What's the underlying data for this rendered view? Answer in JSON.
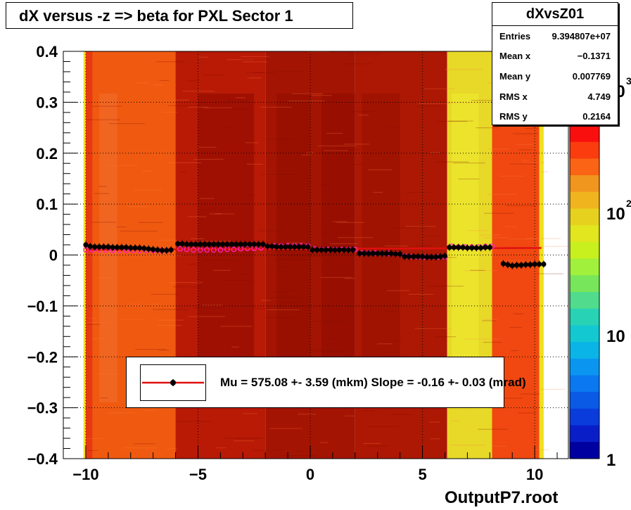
{
  "header": {
    "title": "dX versus -z  => beta for PXL Sector  1"
  },
  "stats": {
    "title": "dXvsZ01",
    "rows": [
      {
        "label": "Entries",
        "value": "9.394807e+07"
      },
      {
        "label": "Mean x",
        "value": "−0.1371"
      },
      {
        "label": "Mean y",
        "value": "0.007769"
      },
      {
        "label": "RMS x",
        "value": "4.749"
      },
      {
        "label": "RMS y",
        "value": "0.2164"
      }
    ]
  },
  "legend": {
    "text": "Mu =  575.08 +-  3.59 (mkm) Slope =   -0.16 +-  0.03 (mrad)"
  },
  "footer": {
    "filename": "OutputP7.root"
  },
  "chart_data": {
    "type": "heatmap",
    "xlim": [
      -11,
      11.5
    ],
    "ylim": [
      -0.4,
      0.4
    ],
    "x_ticks": [
      "−10",
      "−5",
      "0",
      "5",
      "10"
    ],
    "y_ticks": [
      "−0.4",
      "−0.3",
      "−0.2",
      "−0.1",
      "0",
      "0.1",
      "0.2",
      "0.3",
      "0.4"
    ],
    "y_tick_values": [
      -0.4,
      -0.3,
      -0.2,
      -0.1,
      0,
      0.1,
      0.2,
      0.3,
      0.4
    ],
    "x_tick_values": [
      -10,
      -5,
      0,
      5,
      10
    ],
    "color_scale": {
      "labels": [
        "1",
        "10",
        "10",
        "10"
      ],
      "exponents": [
        "",
        "",
        "2",
        "3"
      ],
      "min": 1,
      "max": 1000,
      "log": true
    },
    "grid": true,
    "fit_line": {
      "x": [
        -10,
        10.3
      ],
      "y": [
        0.0105,
        0.0138
      ],
      "color": "#e01010"
    },
    "series_black": [
      [
        -10,
        0.02
      ],
      [
        -9.8,
        0.017
      ],
      [
        -9.6,
        0.016
      ],
      [
        -9.4,
        0.016
      ],
      [
        -9.2,
        0.016
      ],
      [
        -9.0,
        0.016
      ],
      [
        -8.8,
        0.015
      ],
      [
        -8.6,
        0.015
      ],
      [
        -8.4,
        0.015
      ],
      [
        -8.2,
        0.015
      ],
      [
        -8.0,
        0.014
      ],
      [
        -7.8,
        0.014
      ],
      [
        -7.6,
        0.014
      ],
      [
        -7.4,
        0.013
      ],
      [
        -7.2,
        0.012
      ],
      [
        -7.0,
        0.011
      ],
      [
        -6.8,
        0.01
      ],
      [
        -6.6,
        0.009
      ],
      [
        -6.4,
        0.009
      ],
      [
        -6.2,
        0.01
      ],
      [
        -5.9,
        0.022
      ],
      [
        -5.7,
        0.022
      ],
      [
        -5.5,
        0.021
      ],
      [
        -5.3,
        0.021
      ],
      [
        -5.1,
        0.021
      ],
      [
        -4.9,
        0.021
      ],
      [
        -4.7,
        0.021
      ],
      [
        -4.5,
        0.021
      ],
      [
        -4.3,
        0.021
      ],
      [
        -4.1,
        0.021
      ],
      [
        -3.9,
        0.021
      ],
      [
        -3.7,
        0.021
      ],
      [
        -3.5,
        0.021
      ],
      [
        -3.3,
        0.021
      ],
      [
        -3.1,
        0.021
      ],
      [
        -2.9,
        0.021
      ],
      [
        -2.7,
        0.021
      ],
      [
        -2.5,
        0.021
      ],
      [
        -2.3,
        0.021
      ],
      [
        -2.1,
        0.021
      ],
      [
        -1.9,
        0.017
      ],
      [
        -1.7,
        0.017
      ],
      [
        -1.5,
        0.016
      ],
      [
        -1.3,
        0.016
      ],
      [
        -1.1,
        0.016
      ],
      [
        -0.9,
        0.016
      ],
      [
        -0.7,
        0.016
      ],
      [
        -0.5,
        0.016
      ],
      [
        -0.3,
        0.016
      ],
      [
        -0.1,
        0.016
      ],
      [
        0.1,
        0.01
      ],
      [
        0.3,
        0.01
      ],
      [
        0.5,
        0.01
      ],
      [
        0.7,
        0.01
      ],
      [
        0.9,
        0.01
      ],
      [
        1.1,
        0.01
      ],
      [
        1.3,
        0.01
      ],
      [
        1.5,
        0.01
      ],
      [
        1.7,
        0.01
      ],
      [
        1.9,
        0.01
      ],
      [
        2.2,
        0.003
      ],
      [
        2.4,
        0.003
      ],
      [
        2.6,
        0.003
      ],
      [
        2.8,
        0.003
      ],
      [
        3.0,
        0.003
      ],
      [
        3.2,
        0.003
      ],
      [
        3.4,
        0.003
      ],
      [
        3.6,
        0.003
      ],
      [
        3.8,
        0.002
      ],
      [
        4.0,
        0.002
      ],
      [
        4.2,
        -0.003
      ],
      [
        4.4,
        -0.003
      ],
      [
        4.6,
        -0.003
      ],
      [
        4.8,
        -0.003
      ],
      [
        5.0,
        -0.003
      ],
      [
        5.2,
        -0.004
      ],
      [
        5.4,
        -0.004
      ],
      [
        5.6,
        -0.004
      ],
      [
        5.8,
        -0.003
      ],
      [
        6.0,
        -0.002
      ],
      [
        6.2,
        0.015
      ],
      [
        6.4,
        0.015
      ],
      [
        6.6,
        0.015
      ],
      [
        6.8,
        0.015
      ],
      [
        7.0,
        0.014
      ],
      [
        7.2,
        0.014
      ],
      [
        7.4,
        0.014
      ],
      [
        7.6,
        0.014
      ],
      [
        7.8,
        0.015
      ],
      [
        8.0,
        0.015
      ],
      [
        8.6,
        -0.017
      ],
      [
        8.8,
        -0.019
      ],
      [
        9.0,
        -0.021
      ],
      [
        9.2,
        -0.02
      ],
      [
        9.4,
        -0.02
      ],
      [
        9.6,
        -0.019
      ],
      [
        9.8,
        -0.019
      ],
      [
        10.0,
        -0.018
      ],
      [
        10.2,
        -0.018
      ],
      [
        10.4,
        -0.018
      ]
    ],
    "series_magenta": [
      [
        -10,
        0.01
      ],
      [
        -9.7,
        0.01
      ],
      [
        -9.4,
        0.01
      ],
      [
        -9.1,
        0.01
      ],
      [
        -8.8,
        0.009
      ],
      [
        -8.5,
        0.009
      ],
      [
        -8.2,
        0.009
      ],
      [
        -7.9,
        0.009
      ],
      [
        -7.6,
        0.009
      ],
      [
        -7.3,
        0.009
      ],
      [
        -7.0,
        0.009
      ],
      [
        -6.7,
        0.009
      ],
      [
        -6.4,
        0.009
      ],
      [
        -5.8,
        0.012
      ],
      [
        -5.5,
        0.011
      ],
      [
        -5.2,
        0.01
      ],
      [
        -4.9,
        0.01
      ],
      [
        -4.6,
        0.01
      ],
      [
        -4.3,
        0.01
      ],
      [
        -4.0,
        0.01
      ],
      [
        -3.7,
        0.011
      ],
      [
        -3.4,
        0.011
      ],
      [
        -3.1,
        0.012
      ],
      [
        -2.8,
        0.013
      ],
      [
        -2.5,
        0.013
      ],
      [
        -2.2,
        0.014
      ],
      [
        -1.9,
        0.017
      ],
      [
        -1.6,
        0.018
      ],
      [
        -1.3,
        0.018
      ],
      [
        -1.0,
        0.018
      ],
      [
        -0.7,
        0.018
      ],
      [
        -0.4,
        0.018
      ],
      [
        -0.1,
        0.018
      ],
      [
        0.2,
        0.012
      ],
      [
        0.5,
        0.011
      ],
      [
        0.8,
        0.011
      ],
      [
        1.1,
        0.011
      ],
      [
        1.4,
        0.011
      ],
      [
        1.7,
        0.011
      ],
      [
        2.0,
        0.011
      ],
      [
        2.3,
        0.004
      ],
      [
        2.6,
        0.004
      ],
      [
        2.9,
        0.004
      ],
      [
        3.2,
        0.003
      ],
      [
        3.5,
        0.003
      ],
      [
        3.8,
        0.002
      ],
      [
        4.2,
        -0.002
      ],
      [
        4.5,
        -0.003
      ],
      [
        4.8,
        -0.004
      ],
      [
        5.1,
        -0.004
      ],
      [
        5.4,
        -0.004
      ],
      [
        5.7,
        -0.004
      ],
      [
        6.0,
        -0.004
      ],
      [
        6.3,
        0.017
      ],
      [
        6.6,
        0.016
      ],
      [
        6.9,
        0.016
      ],
      [
        7.2,
        0.016
      ],
      [
        7.5,
        0.016
      ],
      [
        7.8,
        0.017
      ],
      [
        8.1,
        0.017
      ]
    ]
  }
}
